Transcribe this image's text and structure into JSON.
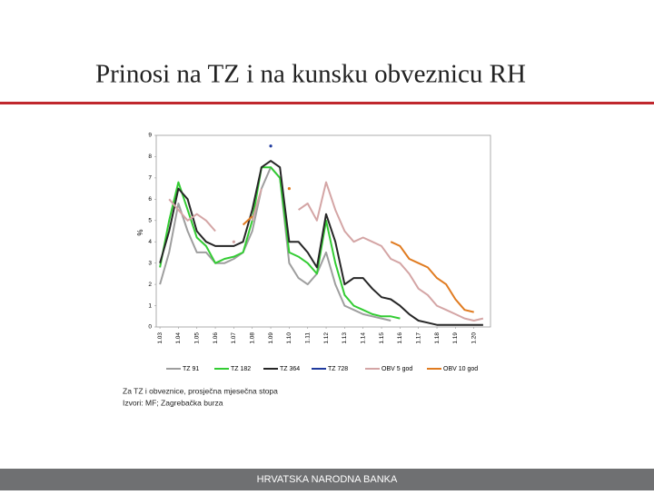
{
  "title": "Prinosi na TZ i na kunsku obveznicu RH",
  "notes": [
    "Za TZ i obveznice, prosječna mjesečna stopa",
    "Izvori: MF; Zagrebačka burza"
  ],
  "footer": "HRVATSKA NARODNA BANKA",
  "chart_data": {
    "type": "line",
    "ylabel": "%",
    "x": [
      2003,
      2003.5,
      2004,
      2004.5,
      2005,
      2005.5,
      2006,
      2006.5,
      2007,
      2007.5,
      2008,
      2008.5,
      2009,
      2009.5,
      2010,
      2010.5,
      2011,
      2011.5,
      2012,
      2012.5,
      2013,
      2013.5,
      2014,
      2014.5,
      2015,
      2015.5,
      2016,
      2016.5,
      2017,
      2017.5,
      2018,
      2018.5,
      2019,
      2019.5,
      2020,
      2020.5
    ],
    "xlim": [
      2002.8,
      2020.9
    ],
    "xticks": [
      {
        "value": 2003,
        "label": "1.03"
      },
      {
        "value": 2004,
        "label": "1.04"
      },
      {
        "value": 2005,
        "label": "1.05"
      },
      {
        "value": 2006,
        "label": "1.06"
      },
      {
        "value": 2007,
        "label": "1.07"
      },
      {
        "value": 2008,
        "label": "1.08"
      },
      {
        "value": 2009,
        "label": "1.09"
      },
      {
        "value": 2010,
        "label": "1.10"
      },
      {
        "value": 2011,
        "label": "1.11"
      },
      {
        "value": 2012,
        "label": "1.12"
      },
      {
        "value": 2013,
        "label": "1.13"
      },
      {
        "value": 2014,
        "label": "1.14"
      },
      {
        "value": 2015,
        "label": "1.15"
      },
      {
        "value": 2016,
        "label": "1.16"
      },
      {
        "value": 2017,
        "label": "1.17"
      },
      {
        "value": 2018,
        "label": "1.18"
      },
      {
        "value": 2019,
        "label": "1.19"
      },
      {
        "value": 2020,
        "label": "1.20"
      }
    ],
    "ylim": [
      0,
      9
    ],
    "yticks": [
      0,
      1,
      2,
      3,
      4,
      5,
      6,
      7,
      8,
      9
    ],
    "grid": false,
    "series": [
      {
        "name": "TZ 91",
        "color": "#9e9e9e",
        "values": [
          2.0,
          3.5,
          5.8,
          4.5,
          3.5,
          3.5,
          3.0,
          3.0,
          3.2,
          3.5,
          4.5,
          6.5,
          7.5,
          7.0,
          3.0,
          2.3,
          2.0,
          2.5,
          3.5,
          2.0,
          1.0,
          0.8,
          0.6,
          0.5,
          0.4,
          0.3,
          null,
          null,
          null,
          null,
          null,
          null,
          null,
          null,
          null,
          null
        ]
      },
      {
        "name": "TZ 182",
        "color": "#33cc33",
        "values": [
          2.8,
          5.0,
          6.8,
          5.5,
          4.2,
          3.8,
          3.0,
          3.2,
          3.3,
          3.5,
          5.0,
          7.5,
          7.5,
          7.0,
          3.5,
          3.3,
          3.0,
          2.5,
          5.0,
          3.0,
          1.5,
          1.0,
          0.8,
          0.6,
          0.5,
          0.5,
          0.4,
          null,
          null,
          null,
          null,
          null,
          null,
          null,
          null,
          null
        ]
      },
      {
        "name": "TZ 364",
        "color": "#262626",
        "values": [
          3.0,
          4.5,
          6.5,
          6.0,
          4.5,
          4.0,
          3.8,
          3.8,
          3.8,
          4.0,
          5.5,
          7.5,
          7.8,
          7.5,
          4.0,
          4.0,
          3.5,
          2.8,
          5.3,
          4.0,
          2.0,
          2.3,
          2.3,
          1.8,
          1.4,
          1.3,
          1.0,
          0.6,
          0.3,
          0.2,
          0.1,
          0.1,
          0.1,
          0.1,
          0.1,
          0.1
        ]
      },
      {
        "name": "TZ 728",
        "color": "#1f3a9e",
        "values": [
          null,
          null,
          null,
          null,
          null,
          null,
          null,
          null,
          null,
          null,
          null,
          null,
          8.5,
          null,
          null,
          null,
          null,
          null,
          null,
          null,
          null,
          null,
          null,
          null,
          null,
          null,
          null,
          null,
          null,
          null,
          null,
          null,
          null,
          null,
          null,
          null
        ]
      },
      {
        "name": "OBV 5 god",
        "color": "#d4a5a5",
        "values": [
          null,
          6.0,
          5.5,
          5.0,
          5.3,
          5.0,
          4.5,
          null,
          4.0,
          null,
          5.0,
          6.5,
          null,
          null,
          null,
          5.5,
          5.8,
          5.0,
          6.8,
          5.5,
          4.5,
          4.0,
          4.2,
          4.0,
          3.8,
          3.2,
          3.0,
          2.5,
          1.8,
          1.5,
          1.0,
          0.8,
          0.6,
          0.4,
          0.3,
          0.4
        ]
      },
      {
        "name": "OBV 10 god",
        "color": "#e07b20",
        "values": [
          null,
          null,
          null,
          null,
          null,
          null,
          null,
          null,
          null,
          4.8,
          5.2,
          null,
          null,
          null,
          6.5,
          null,
          null,
          null,
          null,
          null,
          null,
          null,
          null,
          null,
          null,
          4.0,
          3.8,
          3.2,
          3.0,
          2.8,
          2.3,
          2.0,
          1.3,
          0.8,
          0.7,
          null
        ]
      }
    ]
  }
}
